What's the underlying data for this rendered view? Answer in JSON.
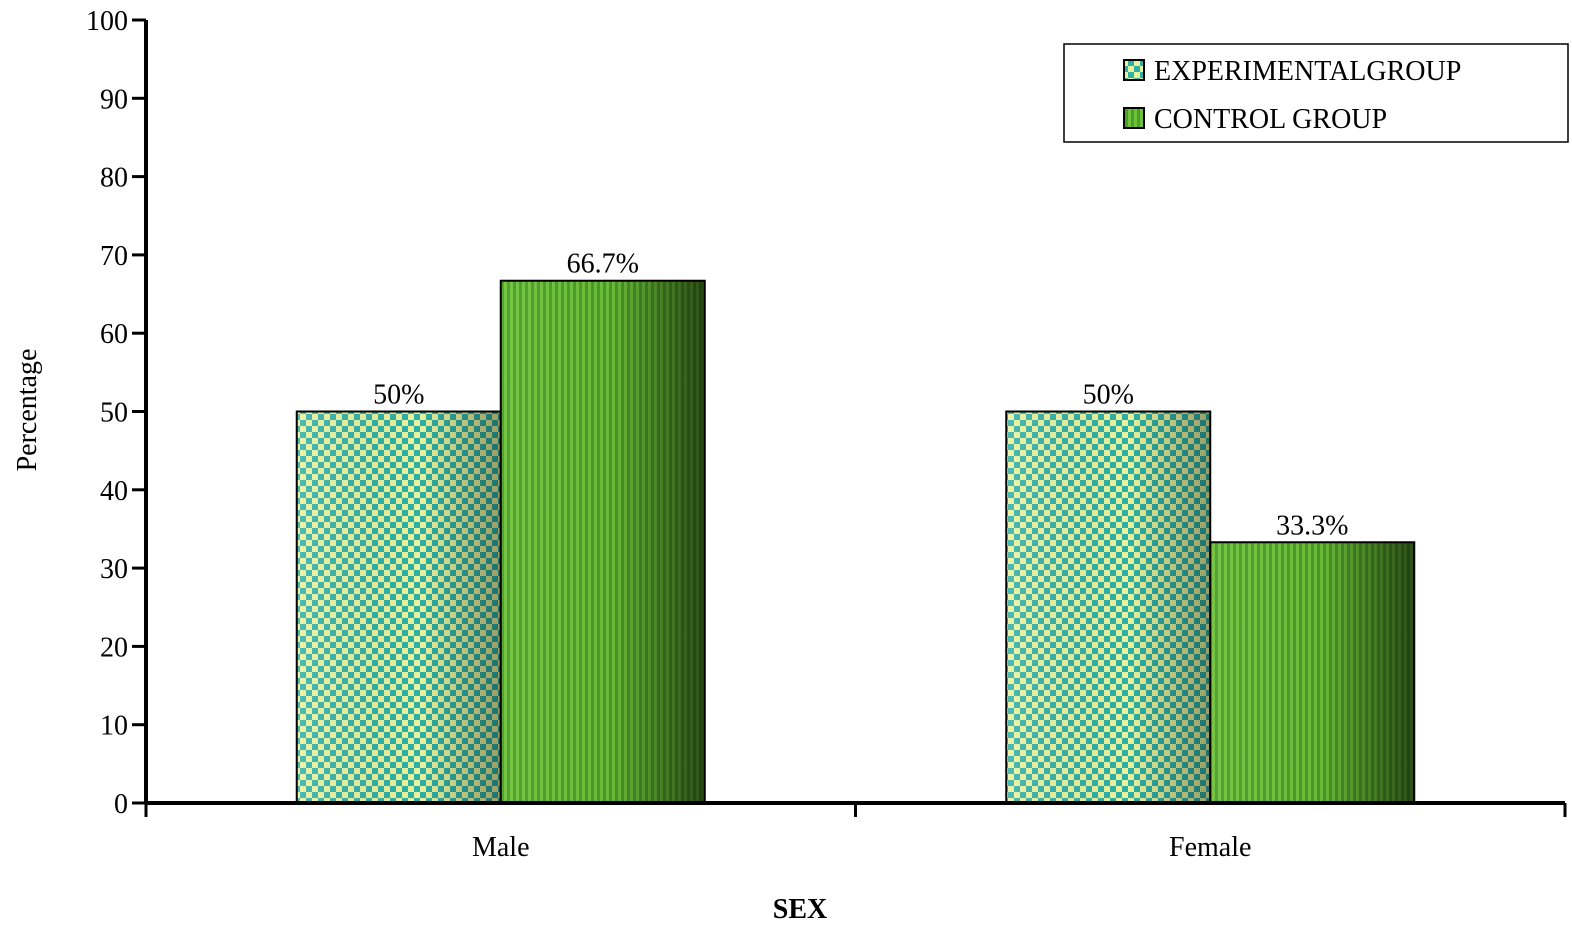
{
  "chart_data": {
    "type": "bar",
    "categories": [
      "Male",
      "Female"
    ],
    "series": [
      {
        "name": "EXPERIMENTALGROUP",
        "values": [
          50,
          50
        ],
        "labels": [
          "50%",
          "50%"
        ],
        "pattern": "checker",
        "color": "#3bb5a8",
        "color_light": "#e6f29a"
      },
      {
        "name": "CONTROL GROUP",
        "values": [
          66.7,
          33.3
        ],
        "labels": [
          "66.7%",
          "33.3%"
        ],
        "pattern": "vertical-stripes",
        "color": "#3f8f22",
        "color_light": "#5dbb2e"
      }
    ],
    "xlabel": "SEX",
    "ylabel": "Percentage",
    "ylim": [
      0,
      100
    ],
    "yticks": [
      0,
      10,
      20,
      30,
      40,
      50,
      60,
      70,
      80,
      90,
      100
    ],
    "grid": false,
    "legend_position": "top-right"
  }
}
